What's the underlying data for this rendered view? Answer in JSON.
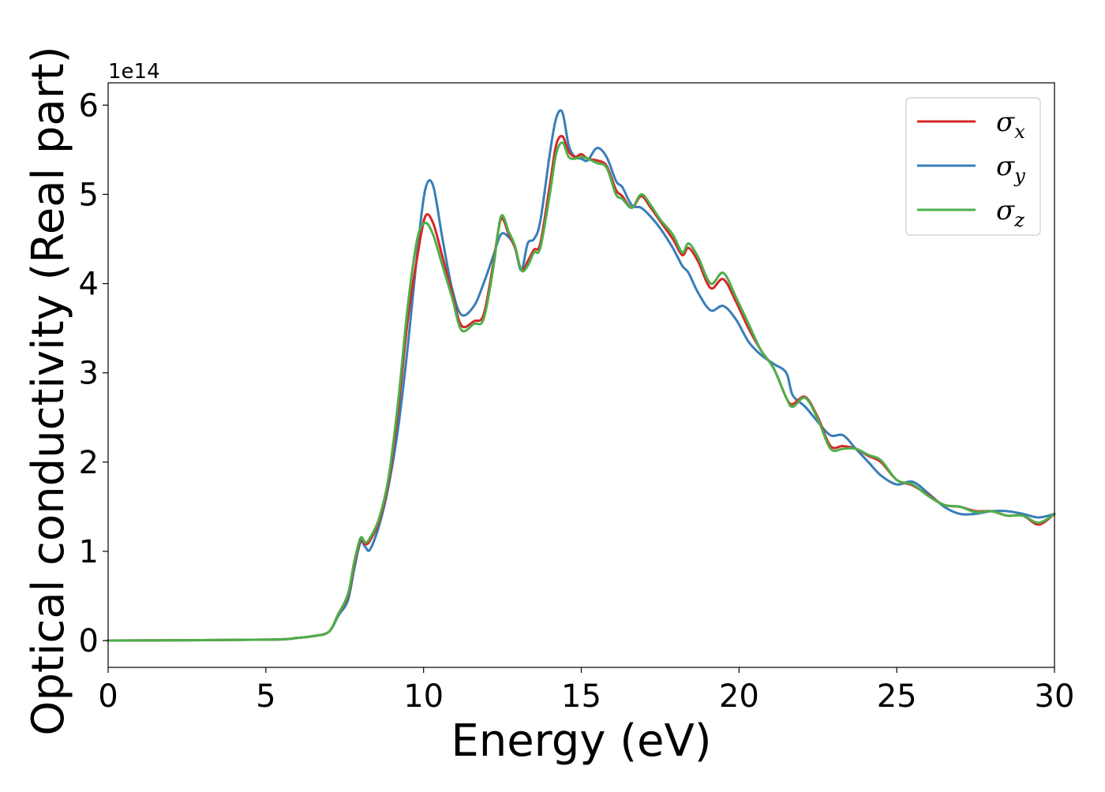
{
  "chart_data": {
    "type": "line",
    "title": "",
    "xlabel": "Energy (eV)",
    "ylabel": "Optical conductivity (Real part)",
    "y_offset_label": "1e14",
    "xlim": [
      0,
      30
    ],
    "ylim": [
      -0.3,
      6.25
    ],
    "x_ticks": [
      0,
      5,
      10,
      15,
      20,
      25,
      30
    ],
    "y_ticks": [
      0,
      1,
      2,
      3,
      4,
      5,
      6
    ],
    "grid": false,
    "legend_position": "upper right",
    "series": [
      {
        "name": "σx",
        "symbol": "σ",
        "subscript": "x",
        "color": "#d62728",
        "x": [
          0,
          5,
          6,
          6.5,
          7,
          7.3,
          7.6,
          7.8,
          8.0,
          8.15,
          8.3,
          8.6,
          8.9,
          9.2,
          9.5,
          9.8,
          10.05,
          10.3,
          10.6,
          10.9,
          11.2,
          11.6,
          11.9,
          12.2,
          12.45,
          12.7,
          12.9,
          13.1,
          13.3,
          13.5,
          13.7,
          14.0,
          14.2,
          14.4,
          14.6,
          14.8,
          15.0,
          15.2,
          15.5,
          15.8,
          16.1,
          16.3,
          16.6,
          16.9,
          17.2,
          17.5,
          17.9,
          18.2,
          18.4,
          18.7,
          19.1,
          19.5,
          19.9,
          20.3,
          20.7,
          21.1,
          21.5,
          21.7,
          22.1,
          22.5,
          22.9,
          23.3,
          23.7,
          24.1,
          24.5,
          25.0,
          25.5,
          26.0,
          26.5,
          27.0,
          27.5,
          28.0,
          28.5,
          29.0,
          29.5,
          30.0
        ],
        "y": [
          0.0,
          0.01,
          0.03,
          0.05,
          0.1,
          0.3,
          0.5,
          0.85,
          1.13,
          1.08,
          1.12,
          1.35,
          1.8,
          2.6,
          3.6,
          4.3,
          4.75,
          4.68,
          4.3,
          3.9,
          3.53,
          3.58,
          3.65,
          4.2,
          4.72,
          4.55,
          4.4,
          4.15,
          4.25,
          4.38,
          4.45,
          5.1,
          5.55,
          5.65,
          5.48,
          5.42,
          5.45,
          5.4,
          5.38,
          5.32,
          5.05,
          4.98,
          4.85,
          4.98,
          4.85,
          4.7,
          4.5,
          4.32,
          4.4,
          4.25,
          3.95,
          4.05,
          3.8,
          3.5,
          3.25,
          3.05,
          2.72,
          2.65,
          2.73,
          2.5,
          2.18,
          2.18,
          2.15,
          2.07,
          2.0,
          1.8,
          1.74,
          1.63,
          1.52,
          1.5,
          1.45,
          1.45,
          1.4,
          1.4,
          1.3,
          1.42
        ]
      },
      {
        "name": "σy",
        "symbol": "σ",
        "subscript": "y",
        "color": "#377eb8",
        "x": [
          0,
          5,
          6,
          6.5,
          7,
          7.3,
          7.6,
          7.8,
          8.0,
          8.15,
          8.3,
          8.6,
          8.9,
          9.2,
          9.5,
          9.8,
          10.05,
          10.3,
          10.6,
          10.9,
          11.2,
          11.6,
          11.9,
          12.2,
          12.45,
          12.7,
          12.9,
          13.1,
          13.3,
          13.5,
          13.7,
          14.0,
          14.2,
          14.4,
          14.6,
          14.8,
          15.0,
          15.2,
          15.5,
          15.8,
          16.1,
          16.3,
          16.6,
          16.9,
          17.2,
          17.5,
          17.9,
          18.2,
          18.4,
          18.7,
          19.1,
          19.5,
          19.9,
          20.3,
          20.7,
          21.1,
          21.5,
          21.7,
          22.1,
          22.5,
          22.9,
          23.3,
          23.7,
          24.1,
          24.5,
          25.0,
          25.5,
          26.0,
          26.5,
          27.0,
          27.5,
          28.0,
          28.5,
          29.0,
          29.5,
          30.0
        ],
        "y": [
          0.0,
          0.01,
          0.03,
          0.05,
          0.1,
          0.28,
          0.45,
          0.8,
          1.1,
          1.05,
          1.02,
          1.3,
          1.75,
          2.4,
          3.3,
          4.35,
          5.05,
          5.1,
          4.5,
          3.95,
          3.65,
          3.75,
          4.0,
          4.3,
          4.55,
          4.52,
          4.4,
          4.15,
          4.45,
          4.5,
          4.7,
          5.45,
          5.85,
          5.92,
          5.55,
          5.42,
          5.4,
          5.38,
          5.52,
          5.42,
          5.15,
          5.08,
          4.88,
          4.85,
          4.75,
          4.62,
          4.4,
          4.2,
          4.12,
          3.9,
          3.7,
          3.75,
          3.6,
          3.35,
          3.2,
          3.1,
          3.0,
          2.75,
          2.62,
          2.45,
          2.3,
          2.3,
          2.15,
          2.0,
          1.85,
          1.75,
          1.78,
          1.65,
          1.5,
          1.42,
          1.42,
          1.45,
          1.45,
          1.42,
          1.38,
          1.42
        ]
      },
      {
        "name": "σz",
        "symbol": "σ",
        "subscript": "z",
        "color": "#4daf4a",
        "x": [
          0,
          5,
          6,
          6.5,
          7,
          7.3,
          7.6,
          7.8,
          8.0,
          8.15,
          8.3,
          8.6,
          8.9,
          9.2,
          9.5,
          9.8,
          10.05,
          10.3,
          10.6,
          10.9,
          11.2,
          11.6,
          11.9,
          12.2,
          12.45,
          12.7,
          12.9,
          13.1,
          13.3,
          13.5,
          13.7,
          14.0,
          14.2,
          14.4,
          14.6,
          14.8,
          15.0,
          15.2,
          15.5,
          15.8,
          16.1,
          16.3,
          16.6,
          16.9,
          17.2,
          17.5,
          17.9,
          18.2,
          18.4,
          18.7,
          19.1,
          19.5,
          19.9,
          20.3,
          20.7,
          21.1,
          21.5,
          21.7,
          22.1,
          22.5,
          22.9,
          23.3,
          23.7,
          24.1,
          24.5,
          25.0,
          25.5,
          26.0,
          26.5,
          27.0,
          27.5,
          28.0,
          28.5,
          29.0,
          29.5,
          30.0
        ],
        "y": [
          0.0,
          0.01,
          0.03,
          0.05,
          0.1,
          0.3,
          0.52,
          0.88,
          1.15,
          1.1,
          1.15,
          1.38,
          1.85,
          2.7,
          3.75,
          4.5,
          4.68,
          4.55,
          4.2,
          3.85,
          3.48,
          3.55,
          3.6,
          4.15,
          4.75,
          4.58,
          4.42,
          4.15,
          4.2,
          4.35,
          4.4,
          5.0,
          5.45,
          5.58,
          5.42,
          5.4,
          5.42,
          5.4,
          5.35,
          5.3,
          5.0,
          4.95,
          4.85,
          5.0,
          4.88,
          4.72,
          4.55,
          4.35,
          4.45,
          4.3,
          4.0,
          4.12,
          3.85,
          3.55,
          3.25,
          3.05,
          2.72,
          2.62,
          2.72,
          2.48,
          2.15,
          2.15,
          2.15,
          2.08,
          2.02,
          1.8,
          1.75,
          1.62,
          1.52,
          1.5,
          1.44,
          1.45,
          1.4,
          1.4,
          1.32,
          1.42
        ]
      }
    ]
  }
}
